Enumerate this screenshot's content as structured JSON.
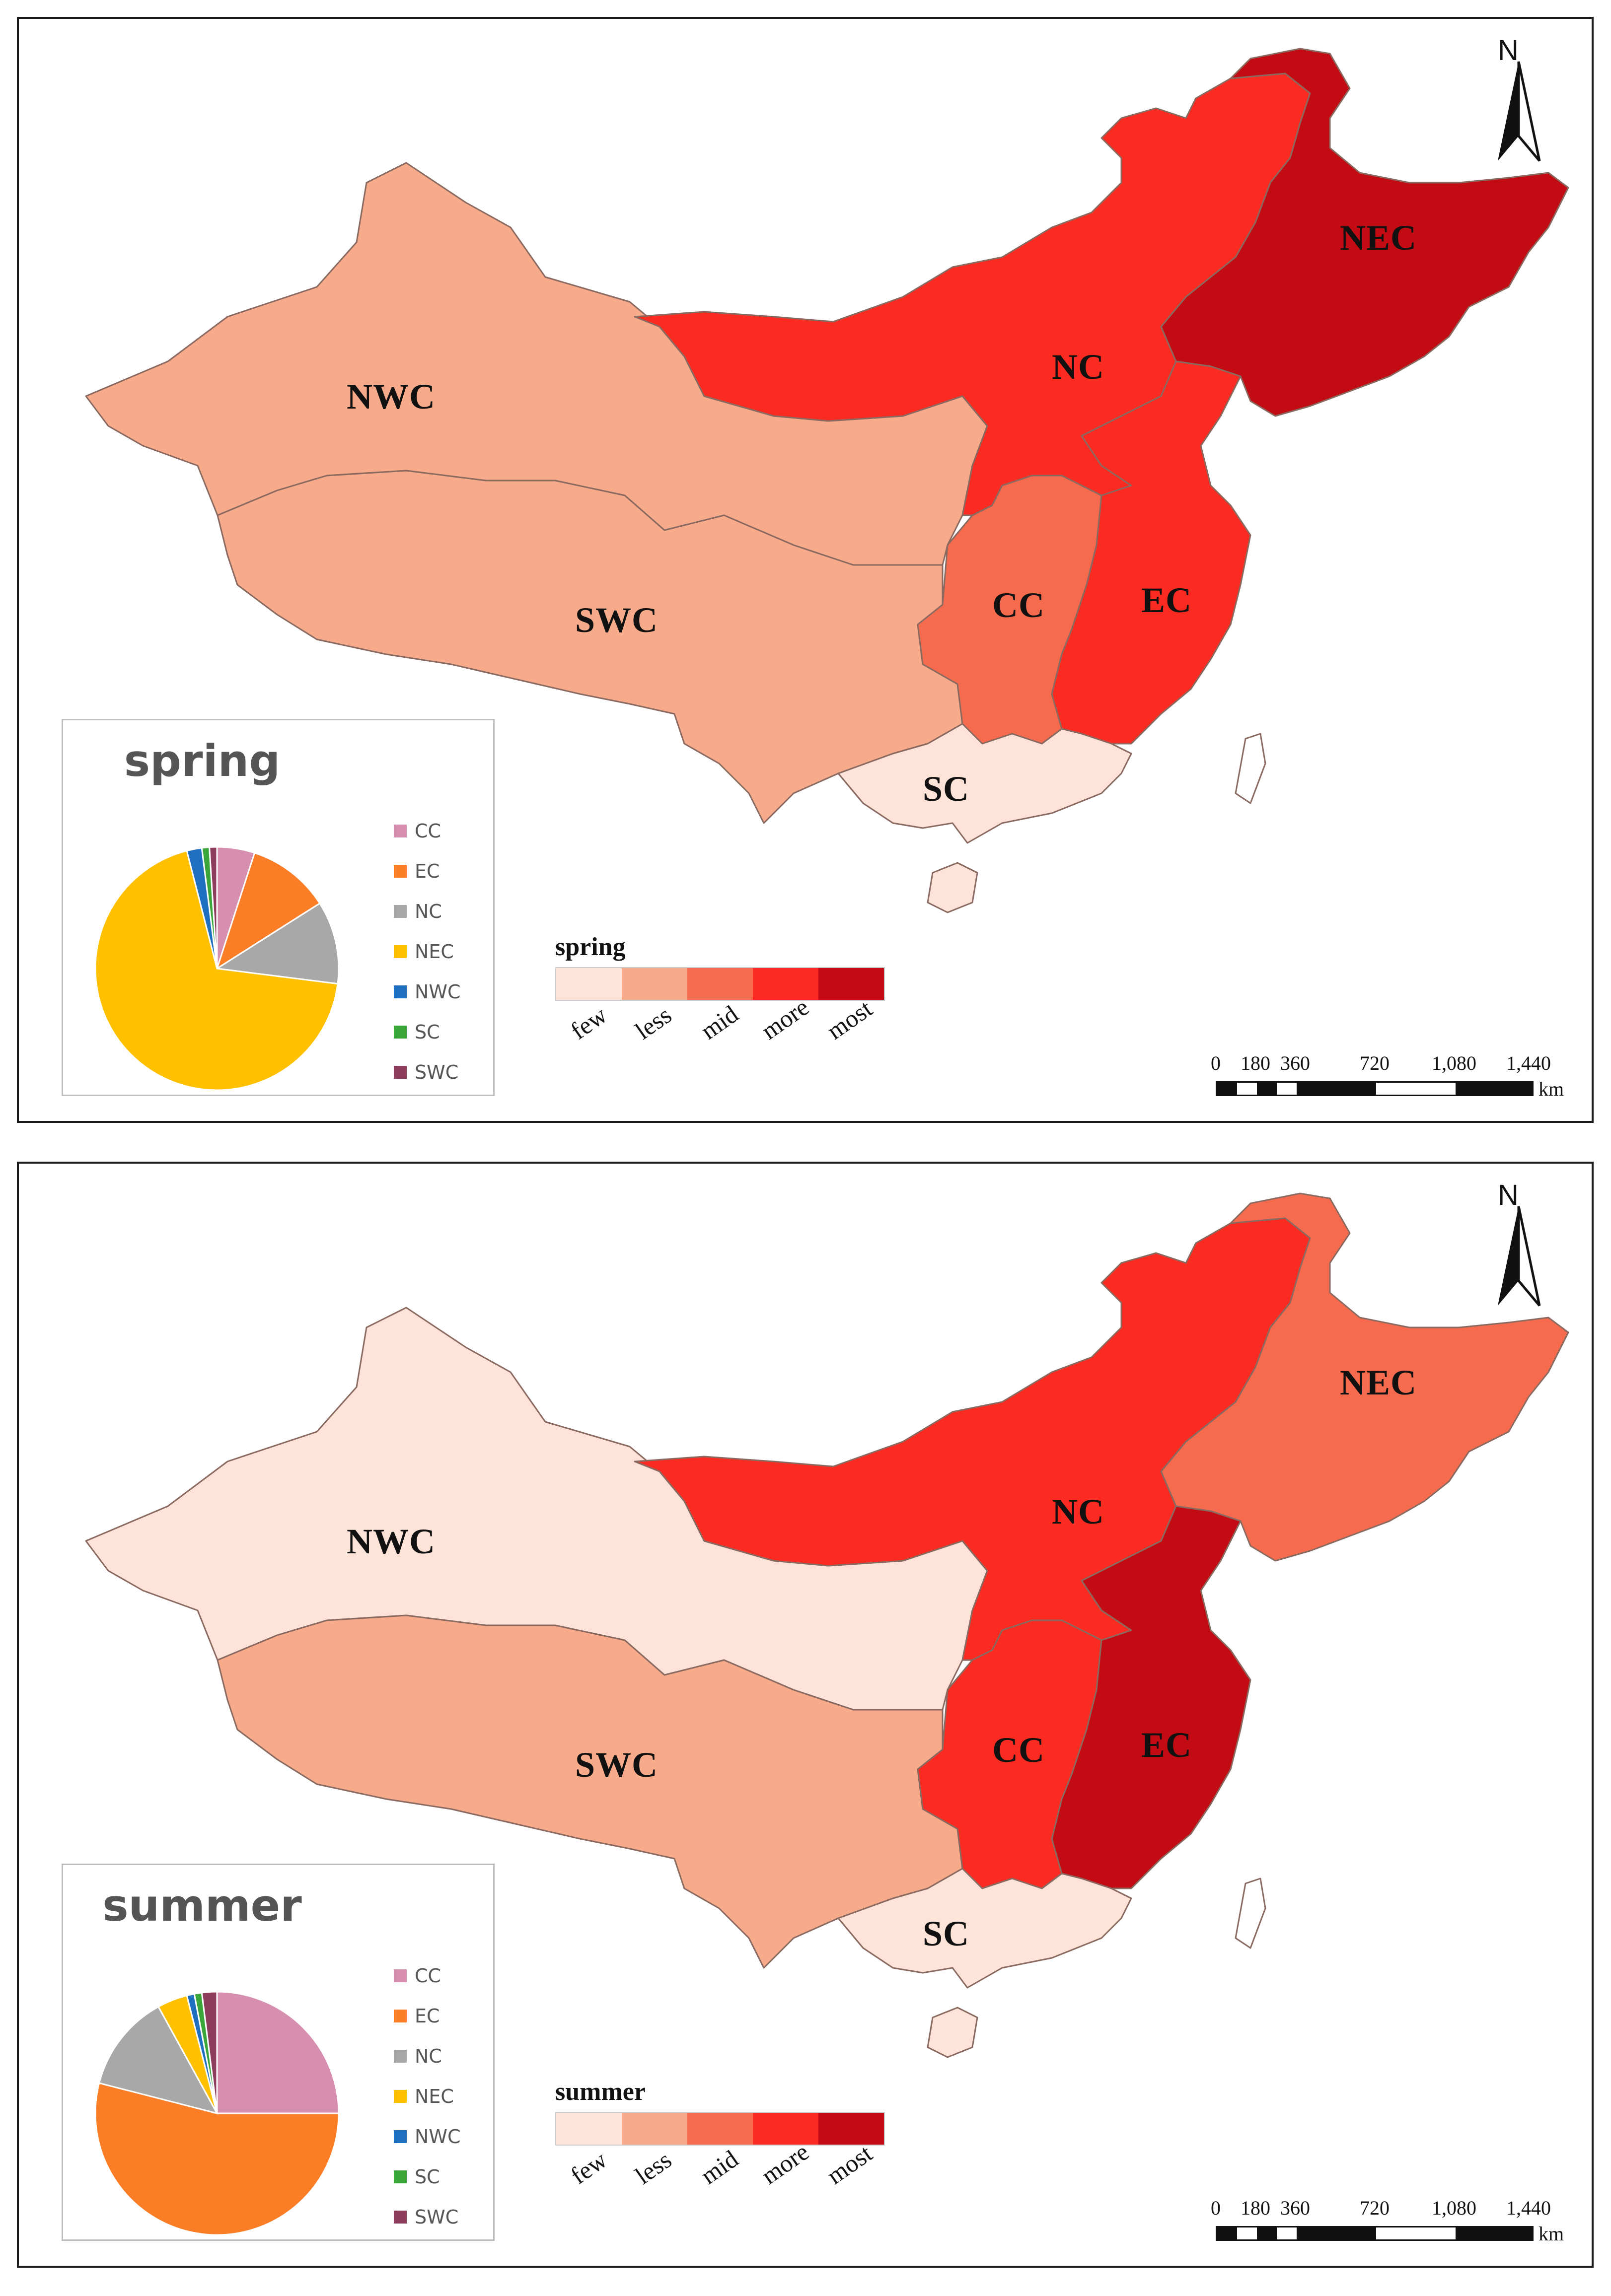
{
  "colors": {
    "few": "#fde3d8",
    "less": "#f8ab8b",
    "mid": "#f66a4e",
    "more": "#fc2b22",
    "most": "#c20b12"
  },
  "panels": [
    {
      "season": "spring",
      "legend_title": "spring",
      "legend_levels": [
        "few",
        "less",
        "mid",
        "more",
        "most"
      ],
      "regions": [
        {
          "code": "NWC",
          "level": "less"
        },
        {
          "code": "SWC",
          "level": "less"
        },
        {
          "code": "NC",
          "level": "more"
        },
        {
          "code": "NEC",
          "level": "most"
        },
        {
          "code": "CC",
          "level": "mid"
        },
        {
          "code": "EC",
          "level": "more"
        },
        {
          "code": "SC",
          "level": "few"
        }
      ],
      "pie": {
        "title": "spring",
        "slices": [
          {
            "name": "CC",
            "value": 5,
            "color": "#d68fae"
          },
          {
            "name": "EC",
            "value": 11,
            "color": "#fb7d26"
          },
          {
            "name": "NC",
            "value": 11,
            "color": "#a8a8a8"
          },
          {
            "name": "NEC",
            "value": 69,
            "color": "#ffc000"
          },
          {
            "name": "NWC",
            "value": 2,
            "color": "#1f6fc0"
          },
          {
            "name": "SC",
            "value": 1,
            "color": "#3aa63a"
          },
          {
            "name": "SWC",
            "value": 1,
            "color": "#8e3c5c"
          }
        ]
      }
    },
    {
      "season": "summer",
      "legend_title": "summer",
      "legend_levels": [
        "few",
        "less",
        "mid",
        "more",
        "most"
      ],
      "regions": [
        {
          "code": "NWC",
          "level": "few"
        },
        {
          "code": "SWC",
          "level": "less"
        },
        {
          "code": "NC",
          "level": "more"
        },
        {
          "code": "NEC",
          "level": "mid"
        },
        {
          "code": "CC",
          "level": "more"
        },
        {
          "code": "EC",
          "level": "most"
        },
        {
          "code": "SC",
          "level": "few"
        }
      ],
      "pie": {
        "title": "summer",
        "slices": [
          {
            "name": "CC",
            "value": 25,
            "color": "#d68fae"
          },
          {
            "name": "EC",
            "value": 54,
            "color": "#fb7d26"
          },
          {
            "name": "NC",
            "value": 13,
            "color": "#a8a8a8"
          },
          {
            "name": "NEC",
            "value": 4,
            "color": "#ffc000"
          },
          {
            "name": "NWC",
            "value": 1,
            "color": "#1f6fc0"
          },
          {
            "name": "SC",
            "value": 1,
            "color": "#3aa63a"
          },
          {
            "name": "SWC",
            "value": 2,
            "color": "#8e3c5c"
          }
        ]
      }
    }
  ],
  "map": {
    "north_label": "N",
    "scale_ticks": [
      "0",
      "180",
      "360",
      "720",
      "1,080",
      "1,440"
    ],
    "scale_unit": "km"
  }
}
